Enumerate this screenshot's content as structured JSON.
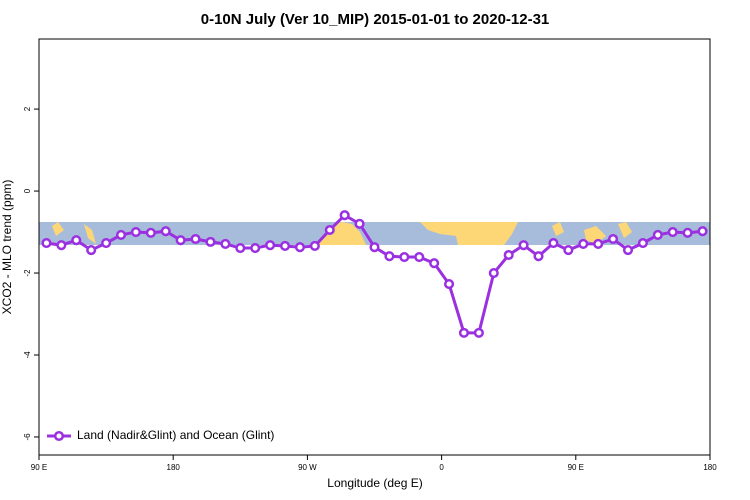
{
  "chart_data": {
    "type": "line",
    "title": "0-10N July (Ver 10_MIP)   2015-01-01 to 2020-12-31",
    "x_label": "Longitude (deg E)",
    "y_label": "XCO2 - MLO trend (ppm)",
    "x": [
      95,
      105,
      115,
      125,
      135,
      145,
      155,
      165,
      175,
      185,
      195,
      205,
      215,
      225,
      235,
      245,
      255,
      265,
      275,
      285,
      295,
      305,
      315,
      325,
      335,
      345,
      355,
      365,
      375,
      385,
      395,
      405,
      415,
      425,
      435,
      445,
      455,
      465,
      475,
      485,
      495,
      505,
      515,
      525,
      535
    ],
    "series": [
      {
        "name": "Land (Nadir&Glint) and Ocean (Glint)",
        "color": "#9b30e0",
        "values": [
          -1.27,
          -1.32,
          -1.2,
          -1.44,
          -1.27,
          -1.07,
          -1.0,
          -1.02,
          -0.98,
          -1.2,
          -1.17,
          -1.24,
          -1.29,
          -1.39,
          -1.39,
          -1.32,
          -1.34,
          -1.37,
          -1.34,
          -0.95,
          -0.59,
          -0.8,
          -1.37,
          -1.59,
          -1.61,
          -1.61,
          -1.76,
          -2.27,
          -3.46,
          -3.46,
          -2.0,
          -1.56,
          -1.32,
          -1.59,
          -1.27,
          -1.44,
          -1.29,
          -1.29,
          -1.17,
          -1.44,
          -1.27,
          -1.07,
          -1.0,
          -1.02,
          -0.98
        ]
      }
    ],
    "xlim": [
      90,
      540
    ],
    "xticks": [
      {
        "value": 90,
        "label": "90 E"
      },
      {
        "value": 180,
        "label": "180"
      },
      {
        "value": 270,
        "label": "90 W"
      },
      {
        "value": 360,
        "label": "0"
      },
      {
        "value": 450,
        "label": "90 E"
      },
      {
        "value": 540,
        "label": "180"
      }
    ],
    "ylim": [
      -6.44,
      3.71
    ],
    "yticks": [
      2,
      0,
      -2,
      -4,
      -6
    ],
    "legend": "bottom-left"
  }
}
